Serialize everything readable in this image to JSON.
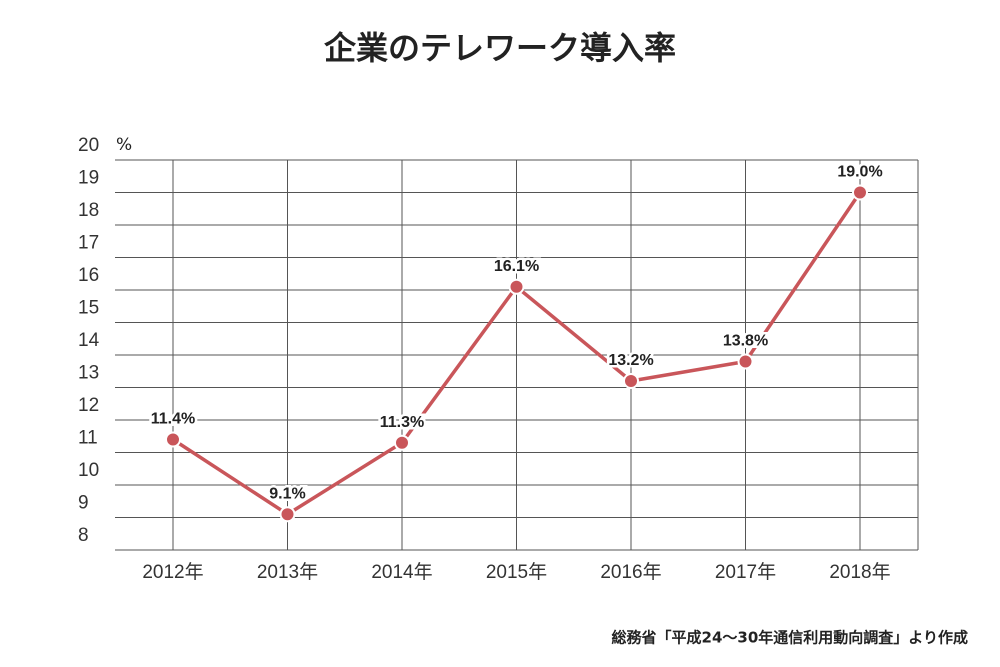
{
  "chart_data": {
    "type": "line",
    "title": "企業のテレワーク導入率",
    "categories": [
      "2012年",
      "2013年",
      "2014年",
      "2015年",
      "2016年",
      "2017年",
      "2018年"
    ],
    "series": [
      {
        "name": "導入率",
        "color": "#c9565a",
        "values": [
          11.4,
          9.1,
          11.3,
          16.1,
          13.2,
          13.8,
          19.0
        ],
        "value_labels": [
          "11.4%",
          "9.1%",
          "11.3%",
          "16.1%",
          "13.2%",
          "13.8%",
          "19.0%"
        ]
      }
    ],
    "ylim": [
      8,
      20
    ],
    "yticks": [
      8,
      9,
      10,
      11,
      12,
      13,
      14,
      15,
      16,
      17,
      18,
      19,
      20
    ],
    "y_unit": "%",
    "grid": true,
    "source": "総務省「平成24～30年通信利用動向調査」より作成"
  }
}
